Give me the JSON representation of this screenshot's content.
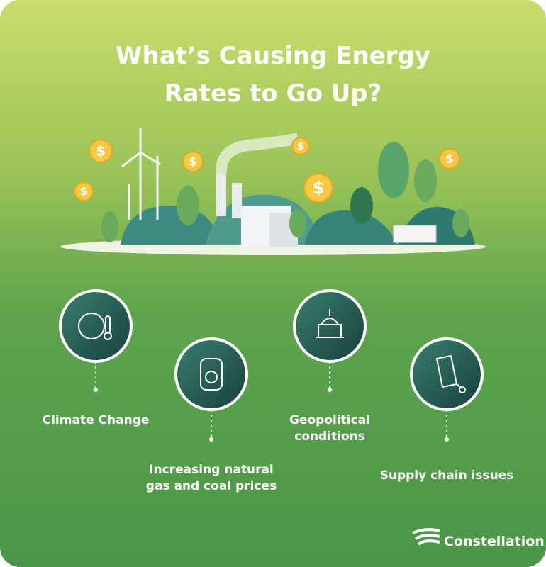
{
  "title_lines": [
    "What’s Causing Energy",
    "Rates to Go Up?"
  ],
  "coin_symbol": "$",
  "items": [
    {
      "label_lines": [
        "Climate Change"
      ]
    },
    {
      "label_lines": [
        "Increasing natural",
        "gas and coal prices"
      ]
    },
    {
      "label_lines": [
        "Geopolitical",
        "conditions"
      ]
    },
    {
      "label_lines": [
        "Supply chain issues"
      ]
    }
  ],
  "brand": "Constellation."
}
